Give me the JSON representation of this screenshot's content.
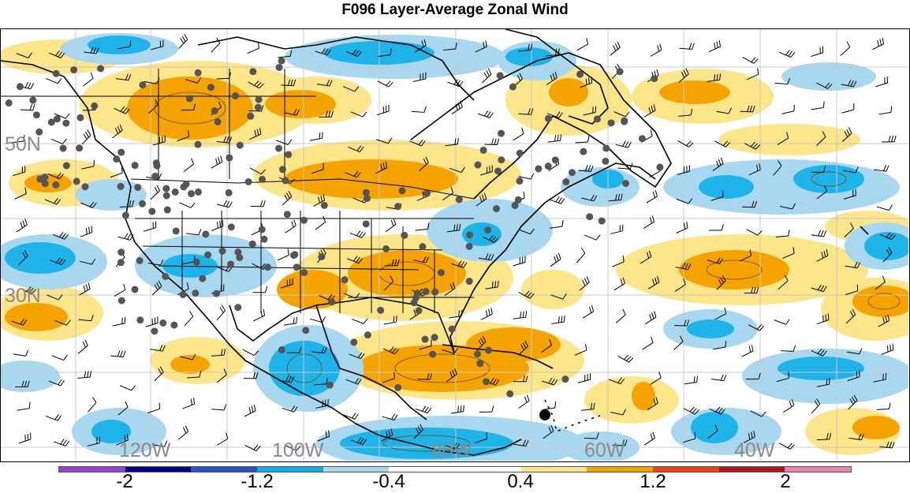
{
  "title": "F096 Layer-Average Zonal Wind",
  "map": {
    "lat_labels": [
      "50N",
      "30N"
    ],
    "lon_labels": [
      "120W",
      "100W",
      "80W",
      "60W",
      "40W"
    ],
    "colors": {
      "neg_light": "#a8d8f0",
      "neg_mid": "#1eb4ea",
      "pos_light": "#fde58a",
      "pos_mid": "#f5a300",
      "coast": "#000000",
      "grid": "#c8c8c8",
      "station": "#555555"
    }
  },
  "colorbar": {
    "colors": [
      "#9b3fd0",
      "#000088",
      "#2452c8",
      "#12a8ec",
      "#a8d8f0",
      "#ffffff",
      "#ffffff",
      "#fde58a",
      "#f5a300",
      "#f04010",
      "#b01818",
      "#f080b0"
    ],
    "tick_labels": [
      "-2",
      "-1.2",
      "-0.4",
      "0.4",
      "1.2",
      "2"
    ]
  }
}
